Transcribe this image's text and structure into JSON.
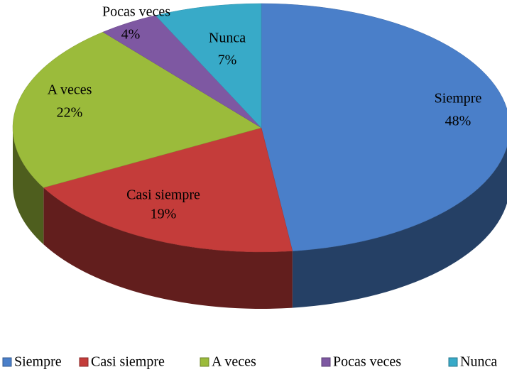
{
  "chart_data": {
    "type": "pie",
    "categories": [
      "Siempre",
      "Casi siempre",
      "A veces",
      "Pocas veces",
      "Nunca"
    ],
    "values": [
      48,
      19,
      22,
      4,
      7
    ],
    "value_labels": [
      "48%",
      "19%",
      "22%",
      "4%",
      "7%"
    ],
    "colors": [
      "#4a7fc9",
      "#c43c3a",
      "#9bbb3b",
      "#7e58a2",
      "#38aac8"
    ],
    "legend": "bottom"
  }
}
